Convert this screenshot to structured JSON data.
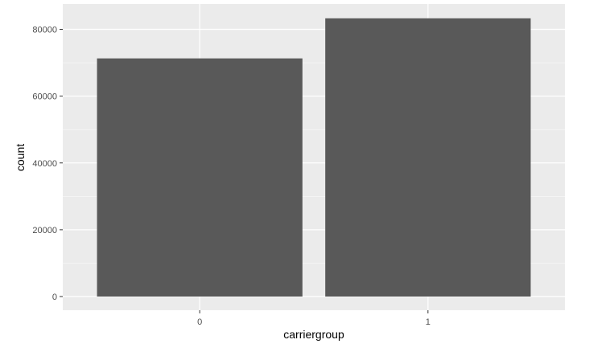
{
  "chart_data": {
    "type": "bar",
    "title": "",
    "xlabel": "carriergroup",
    "ylabel": "count",
    "categories": [
      "0",
      "1"
    ],
    "values": [
      71300,
      83300
    ],
    "ylim": [
      0,
      85000
    ],
    "yticks": [
      0,
      20000,
      40000,
      60000,
      80000
    ],
    "ytick_labels": [
      "0",
      "20000",
      "40000",
      "60000",
      "80000"
    ],
    "grid": true,
    "legend": "none",
    "colors": {
      "panel_background": "#ebebeb",
      "grid_major": "#ffffff",
      "bar_fill": "#595959",
      "tick_text": "#4d4d4d",
      "axis_title": "#000000"
    }
  }
}
